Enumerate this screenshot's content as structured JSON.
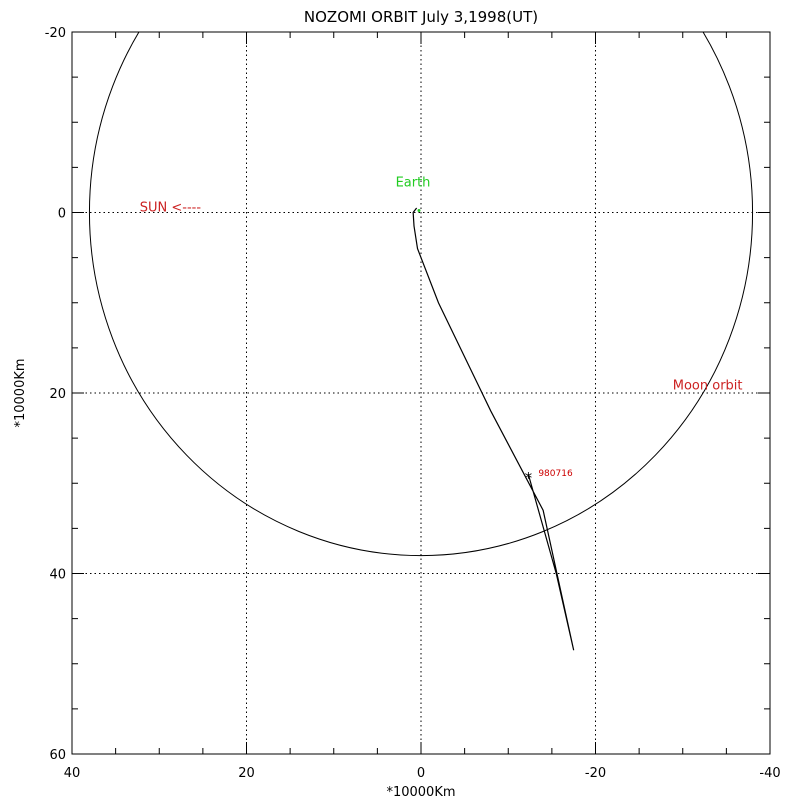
{
  "chart_data": {
    "type": "line",
    "title": "NOZOMI ORBIT July 3,1998(UT)",
    "xlabel": "*10000Km",
    "ylabel": "*10000Km",
    "xlim": [
      40,
      -40
    ],
    "ylim": [
      -20,
      60
    ],
    "x_ticks": [
      40,
      20,
      0,
      -20,
      -40
    ],
    "y_ticks": [
      -20,
      0,
      20,
      40,
      60
    ],
    "grid": true,
    "moon_orbit": {
      "center": [
        0,
        0
      ],
      "radius": 38
    },
    "trajectory": [
      [
        0.5,
        -0.5
      ],
      [
        0.9,
        0.0
      ],
      [
        0.8,
        1.5
      ],
      [
        0.4,
        4.0
      ],
      [
        -2.0,
        10.0
      ],
      [
        -8.0,
        22.0
      ],
      [
        -14.0,
        33.0
      ],
      [
        -17.5,
        48.5
      ],
      [
        -15.5,
        40.0
      ],
      [
        -12.3,
        29.0
      ]
    ],
    "annotations": {
      "earth": {
        "text": "Earth",
        "position": [
          0,
          0
        ],
        "color": "#22cc22"
      },
      "sun": {
        "text": "SUN <----",
        "position": [
          27,
          0
        ],
        "color": "#cc2222"
      },
      "moon": {
        "text": "Moon orbit",
        "position": [
          -34,
          19.5
        ],
        "color": "#cc2222"
      },
      "endpoint": {
        "text": "980716",
        "position": [
          -12.3,
          29.0
        ],
        "color": "#cc0000",
        "marker": "*"
      }
    }
  }
}
